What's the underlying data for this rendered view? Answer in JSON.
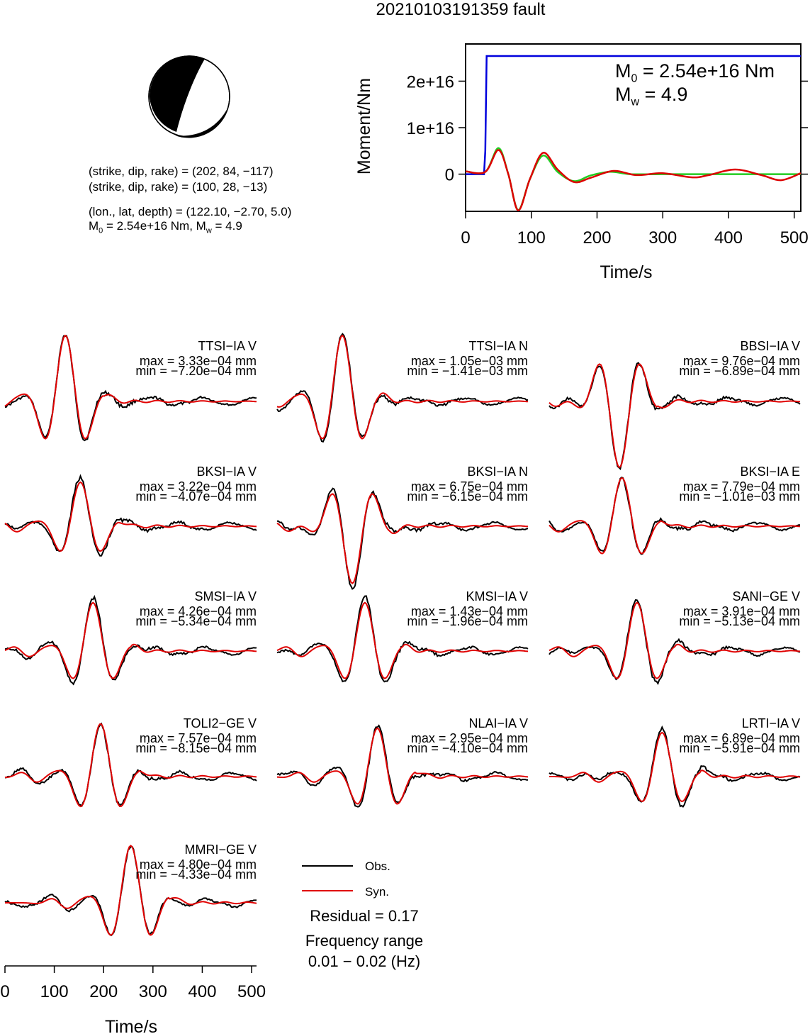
{
  "title": "20210103191359 fault",
  "mechanism": {
    "plane1": "(strike, dip, rake) = (202, 84, −117)",
    "plane2": "(strike, dip, rake) = (100, 28, −13)",
    "location": "(lon., lat, depth) = (122.10, −2.70, 5.0)",
    "moment_line_prefix": "M",
    "moment_line_sub": "0",
    "moment_line_rest": " = 2.54e+16 Nm, M",
    "moment_line_sub2": "w",
    "moment_line_end": " = 4.9"
  },
  "moment_chart": {
    "ylabel": "Moment/Nm",
    "xlabel": "Time/s",
    "m0_prefix": "M",
    "m0_sub": "0",
    "m0_text": " = 2.54e+16 Nm",
    "mw_prefix": "M",
    "mw_sub": "w",
    "mw_text": " = 4.9",
    "ytick_labels": [
      "0",
      "1e+16",
      "2e+16"
    ],
    "xtick_labels": [
      "0",
      "100",
      "200",
      "300",
      "400",
      "500"
    ]
  },
  "waveforms": {
    "xlabel": "Time/s",
    "xtick_labels": [
      "0",
      "100",
      "200",
      "300",
      "400",
      "500"
    ],
    "legend_obs": "Obs.",
    "legend_syn": "Syn.",
    "residual": "Residual = 0.17",
    "freq_label": "Frequency range",
    "freq_range": "0.01 − 0.02 (Hz)"
  },
  "colors": {
    "obs": "#000000",
    "syn": "#e00000",
    "moment_blue": "#0000dd",
    "moment_green": "#22cc22",
    "moment_red": "#dd0000"
  },
  "chart_data": [
    {
      "type": "line",
      "title": "",
      "xlabel": "Time/s",
      "ylabel": "Moment/Nm",
      "xlim": [
        0,
        510
      ],
      "ylim": [
        -8000000000000000.0,
        2.8e+16
      ],
      "series": [
        {
          "name": "",
          "color": "blue",
          "x": [
            0,
            28,
            30,
            32,
            510
          ],
          "y": [
            0,
            0,
            5000000000000000.0,
            2.54e+16,
            2.54e+16
          ]
        },
        {
          "name": "",
          "color": "green",
          "x": [
            0,
            30,
            50,
            65,
            80,
            98,
            118,
            140,
            165,
            190,
            220,
            250,
            300,
            350,
            400,
            450,
            510
          ],
          "y": [
            600000000000000.0,
            500000000000000.0,
            5600000000000000.0,
            0.0,
            -7700000000000000.0,
            -1000000000000000.0,
            4000000000000000.0,
            500000000000000.0,
            -1500000000000000.0,
            -300000000000000.0,
            500000000000000.0,
            0.0,
            0.0,
            0.0,
            0.0,
            0.0,
            0.0
          ]
        },
        {
          "name": "",
          "color": "red",
          "x": [
            0,
            30,
            50,
            65,
            80,
            98,
            118,
            140,
            165,
            190,
            225,
            260,
            300,
            345,
            370,
            410,
            450,
            480,
            510
          ],
          "y": [
            600000000000000.0,
            500000000000000.0,
            5200000000000000.0,
            0.0,
            -7800000000000000.0,
            -1000000000000000.0,
            4600000000000000.0,
            1000000000000000.0,
            -1700000000000000.0,
            -800000000000000.0,
            700000000000000.0,
            -200000000000000.0,
            200000000000000.0,
            -700000000000000.0,
            -200000000000000.0,
            1000000000000000.0,
            -200000000000000.0,
            -1300000000000000.0,
            200000000000000.0
          ]
        }
      ]
    },
    {
      "type": "line",
      "title": "",
      "xlabel": "Time/s",
      "xlim": [
        0,
        510
      ],
      "stations": [
        {
          "name": "TTSI−IA V",
          "max": "max = 3.33e−04 mm",
          "min": "min = −7.20e−04 mm"
        },
        {
          "name": "TTSI−IA N",
          "max": "max = 1.05e−03 mm",
          "min": "min = −1.41e−03 mm"
        },
        {
          "name": "BBSI−IA V",
          "max": "max = 9.76e−04 mm",
          "min": "min = −6.89e−04 mm"
        },
        {
          "name": "BKSI−IA V",
          "max": "max = 3.22e−04 mm",
          "min": "min = −4.07e−04 mm"
        },
        {
          "name": "BKSI−IA N",
          "max": "max = 6.75e−04 mm",
          "min": "min = −6.15e−04 mm"
        },
        {
          "name": "BKSI−IA E",
          "max": "max = 7.79e−04 mm",
          "min": "min = −1.01e−03 mm"
        },
        {
          "name": "SMSI−IA V",
          "max": "max = 4.26e−04 mm",
          "min": "min = −5.34e−04 mm"
        },
        {
          "name": "KMSI−IA V",
          "max": "max = 1.43e−04 mm",
          "min": "min = −1.96e−04 mm"
        },
        {
          "name": "SANI−GE V",
          "max": "max = 3.91e−04 mm",
          "min": "min = −5.13e−04 mm"
        },
        {
          "name": "TOLI2−GE V",
          "max": "max = 7.57e−04 mm",
          "min": "min = −8.15e−04 mm"
        },
        {
          "name": "NLAI−IA V",
          "max": "max = 2.95e−04 mm",
          "min": "min = −4.10e−04 mm"
        },
        {
          "name": "LRTI−IA V",
          "max": "max = 6.89e−04 mm",
          "min": "min = −5.91e−04 mm"
        },
        {
          "name": "MMRI−GE V",
          "max": "max = 4.80e−04 mm",
          "min": "min = −4.33e−04 mm"
        }
      ]
    }
  ]
}
